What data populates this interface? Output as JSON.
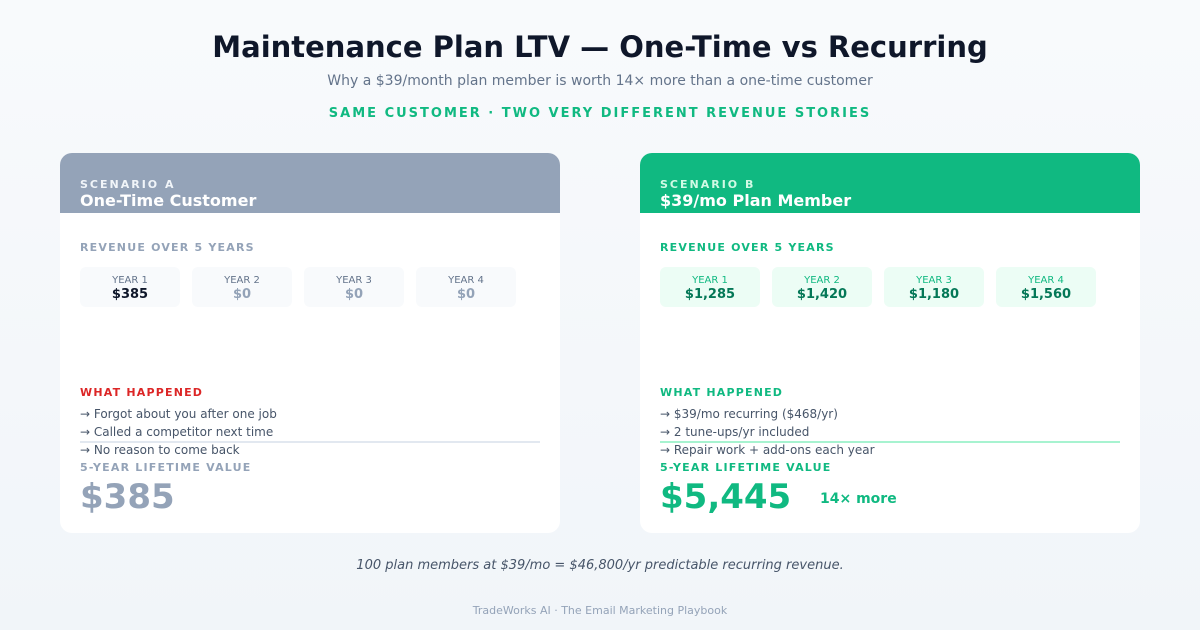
{
  "header": {
    "title": "Maintenance Plan LTV — One-Time vs Recurring",
    "subtitle": "Why a $39/month plan member is worth 14× more than a one-time customer",
    "tagline": "SAME CUSTOMER · TWO VERY DIFFERENT REVENUE STORIES"
  },
  "scenario_a": {
    "kicker": "SCENARIO A",
    "title": "One-Time Customer",
    "revenue_label": "REVENUE OVER 5 YEARS",
    "years": [
      {
        "label": "YEAR 1",
        "value": "$385"
      },
      {
        "label": "YEAR 2",
        "value": "$0"
      },
      {
        "label": "YEAR 3",
        "value": "$0"
      },
      {
        "label": "YEAR 4",
        "value": "$0"
      }
    ],
    "what_label": "WHAT HAPPENED",
    "what_items": [
      "→ Forgot about you after one job",
      "→ Called a competitor next time",
      "→ No reason to come back"
    ],
    "ltv_label": "5-YEAR LIFETIME VALUE",
    "ltv_value": "$385"
  },
  "scenario_b": {
    "kicker": "SCENARIO B",
    "title": "$39/mo Plan Member",
    "revenue_label": "REVENUE OVER 5 YEARS",
    "years": [
      {
        "label": "YEAR 1",
        "value": "$1,285"
      },
      {
        "label": "YEAR 2",
        "value": "$1,420"
      },
      {
        "label": "YEAR 3",
        "value": "$1,180"
      },
      {
        "label": "YEAR 4",
        "value": "$1,560"
      }
    ],
    "what_label": "WHAT HAPPENED",
    "what_items": [
      "→ $39/mo recurring ($468/yr)",
      "→ 2 tune-ups/yr included",
      "→ Repair work + add-ons each year"
    ],
    "ltv_label": "5-YEAR LIFETIME VALUE",
    "ltv_value": "$5,445",
    "multiplier": "14× more"
  },
  "footnote": "100 plan members at $39/mo = $46,800/yr predictable recurring revenue.",
  "footer": "TradeWorks AI · The Email Marketing Playbook",
  "colors": {
    "accent": "#10b981",
    "muted": "#94a3b8",
    "alert": "#dc2626",
    "dark": "#0f172a"
  }
}
